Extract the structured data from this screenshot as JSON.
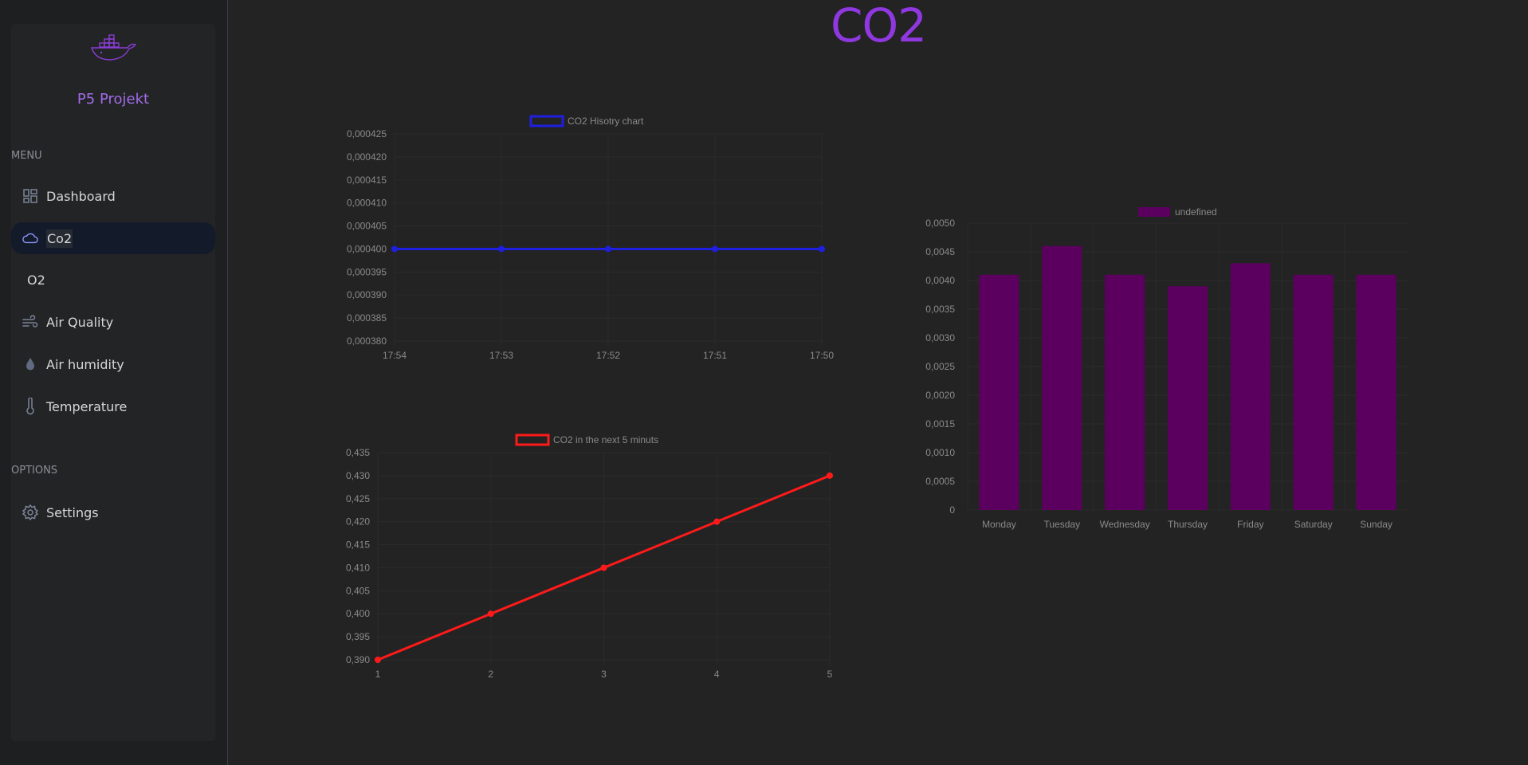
{
  "page": {
    "title": "CO2"
  },
  "sidebar": {
    "brand": "P5 Projekt",
    "menu_label": "MENU",
    "options_label": "OPTIONS",
    "items": [
      {
        "label": "Dashboard",
        "icon": "dashboard-icon",
        "active": false
      },
      {
        "label": "Co2",
        "icon": "cloud-icon",
        "active": true
      },
      {
        "label": "O2",
        "icon": "",
        "active": false
      },
      {
        "label": "Air Quality",
        "icon": "wind-icon",
        "active": false
      },
      {
        "label": "Air humidity",
        "icon": "droplet-icon",
        "active": false
      },
      {
        "label": "Temperature",
        "icon": "thermometer-icon",
        "active": false
      }
    ],
    "options": [
      {
        "label": "Settings",
        "icon": "gear-icon"
      }
    ]
  },
  "colors": {
    "accent": "#9038e0",
    "brand": "#a16be8",
    "history_series": "#1f1fe0",
    "forecast_series": "#ff1a1a",
    "weekly_bars": "#5c0060"
  },
  "chart_data": [
    {
      "type": "line",
      "legend": "CO2 Hisotry chart",
      "categories": [
        "17:54",
        "17:53",
        "17:52",
        "17:51",
        "17:50"
      ],
      "series": [
        {
          "name": "CO2 Hisotry chart",
          "values": [
            0.0004,
            0.0004,
            0.0004,
            0.0004,
            0.0004
          ]
        }
      ],
      "y_ticks": [
        "0,000425",
        "0,000420",
        "0,000415",
        "0,000410",
        "0,000405",
        "0,000400",
        "0,000395",
        "0,000390",
        "0,000385",
        "0,000380"
      ],
      "ylim": [
        0.00038,
        0.000425
      ],
      "grid": true,
      "legend_position": "top"
    },
    {
      "type": "line",
      "legend": "CO2 in the next 5 minuts",
      "categories": [
        "1",
        "2",
        "3",
        "4",
        "5"
      ],
      "series": [
        {
          "name": "CO2 in the next 5 minuts",
          "values": [
            0.39,
            0.4,
            0.41,
            0.42,
            0.43
          ]
        }
      ],
      "y_ticks": [
        "0,435",
        "0,430",
        "0,425",
        "0,420",
        "0,415",
        "0,410",
        "0,405",
        "0,400",
        "0,395",
        "0,390"
      ],
      "ylim": [
        0.39,
        0.435
      ],
      "grid": true,
      "legend_position": "top"
    },
    {
      "type": "bar",
      "legend": "undefined",
      "categories": [
        "Monday",
        "Tuesday",
        "Wednesday",
        "Thursday",
        "Friday",
        "Saturday",
        "Sunday"
      ],
      "series": [
        {
          "name": "undefined",
          "values": [
            0.0041,
            0.0046,
            0.0041,
            0.0039,
            0.0043,
            0.0041,
            0.0041
          ]
        }
      ],
      "y_ticks": [
        "0,0050",
        "0,0045",
        "0,0040",
        "0,0035",
        "0,0030",
        "0,0025",
        "0,0020",
        "0,0015",
        "0,0010",
        "0,0005",
        "0"
      ],
      "ylim": [
        0,
        0.005
      ],
      "grid": true,
      "legend_position": "top"
    }
  ]
}
